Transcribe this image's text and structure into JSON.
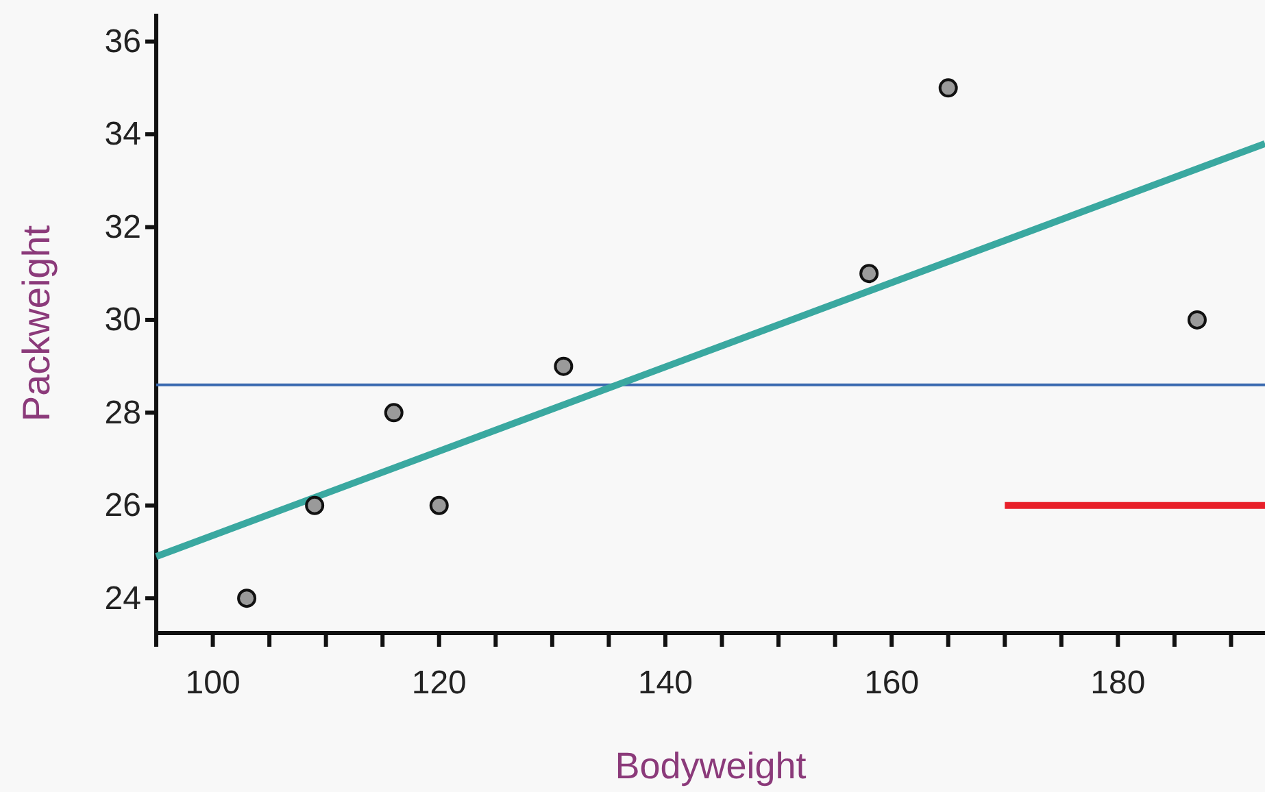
{
  "chart_data": {
    "type": "scatter",
    "xlabel": "Bodyweight",
    "ylabel": "Packweight",
    "series": [
      {
        "color": "#9a9a9a",
        "marker": "circle",
        "x": [
          103,
          109,
          116,
          120,
          131,
          158,
          165,
          187
        ],
        "values": [
          24,
          26,
          28,
          26,
          29,
          31,
          35,
          30
        ]
      },
      {
        "type": "line",
        "color": "#3aa8a0",
        "x": [
          95,
          193
        ],
        "values": [
          24.9,
          33.8
        ]
      },
      {
        "type": "line",
        "color": "#e8202a",
        "x": [
          170,
          193
        ],
        "values": [
          26,
          26
        ]
      }
    ],
    "ref_lines": [
      {
        "axis": "y",
        "value": 28.6,
        "color": "#3a6ab0"
      }
    ],
    "xlim": [
      95,
      193
    ],
    "ylim": [
      23.25,
      36.6
    ],
    "xticks": [
      {
        "value": 95,
        "label": null
      },
      100,
      {
        "value": 105,
        "label": null
      },
      {
        "value": 110,
        "label": null
      },
      {
        "value": 115,
        "label": null
      },
      120,
      {
        "value": 125,
        "label": null
      },
      {
        "value": 130,
        "label": null
      },
      {
        "value": 135,
        "label": null
      },
      140,
      {
        "value": 145,
        "label": null
      },
      {
        "value": 150,
        "label": null
      },
      {
        "value": 155,
        "label": null
      },
      160,
      {
        "value": 165,
        "label": null
      },
      {
        "value": 170,
        "label": null
      },
      {
        "value": 175,
        "label": null
      },
      180,
      {
        "value": 185,
        "label": null
      },
      {
        "value": 190,
        "label": null
      }
    ],
    "yticks": [
      24,
      26,
      28,
      30,
      32,
      34,
      36
    ],
    "grid": false
  }
}
